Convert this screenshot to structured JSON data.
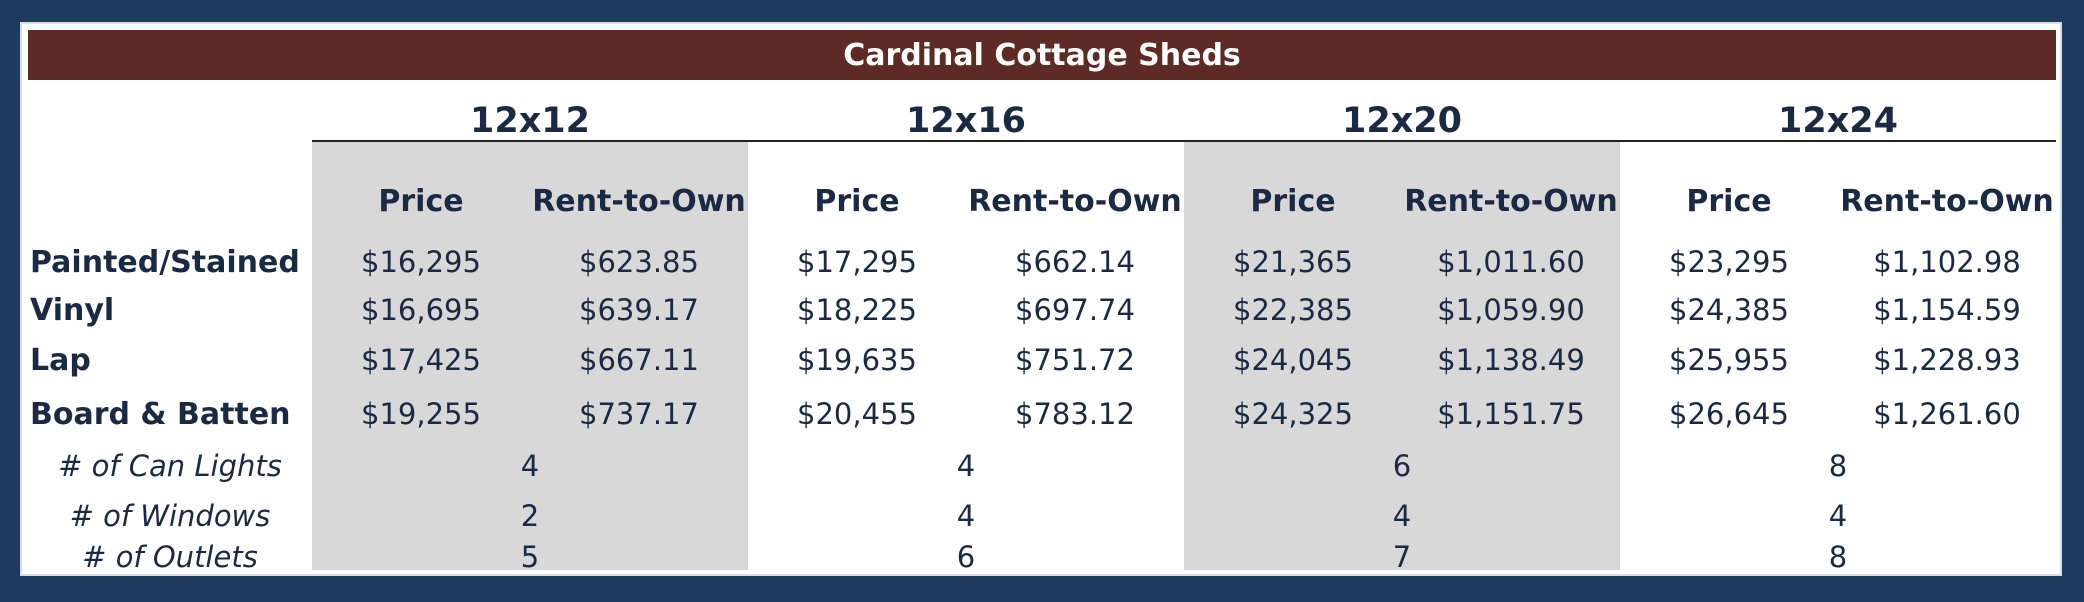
{
  "title": "Cardinal Cottage Sheds",
  "sizes": [
    "12x12",
    "12x16",
    "12x20",
    "12x24"
  ],
  "subheaders": {
    "price": "Price",
    "rent": "Rent-to-Own"
  },
  "rows": [
    {
      "label": "Painted/Stained",
      "values": [
        "$16,295",
        "$623.85",
        "$17,295",
        "$662.14",
        "$21,365",
        "$1,011.60",
        "$23,295",
        "$1,102.98"
      ]
    },
    {
      "label": "Vinyl",
      "values": [
        "$16,695",
        "$639.17",
        "$18,225",
        "$697.74",
        "$22,385",
        "$1,059.90",
        "$24,385",
        "$1,154.59"
      ]
    },
    {
      "label": "Lap",
      "values": [
        "$17,425",
        "$667.11",
        "$19,635",
        "$751.72",
        "$24,045",
        "$1,138.49",
        "$25,955",
        "$1,228.93"
      ]
    },
    {
      "label": "Board & Batten",
      "values": [
        "$19,255",
        "$737.17",
        "$20,455",
        "$783.12",
        "$24,325",
        "$1,151.75",
        "$26,645",
        "$1,261.60"
      ]
    }
  ],
  "features": [
    {
      "label": "# of Can Lights",
      "values": [
        "4",
        "4",
        "6",
        "8"
      ]
    },
    {
      "label": "# of Windows",
      "values": [
        "2",
        "4",
        "4",
        "4"
      ]
    },
    {
      "label": "# of Outlets",
      "values": [
        "5",
        "6",
        "7",
        "8"
      ]
    }
  ]
}
